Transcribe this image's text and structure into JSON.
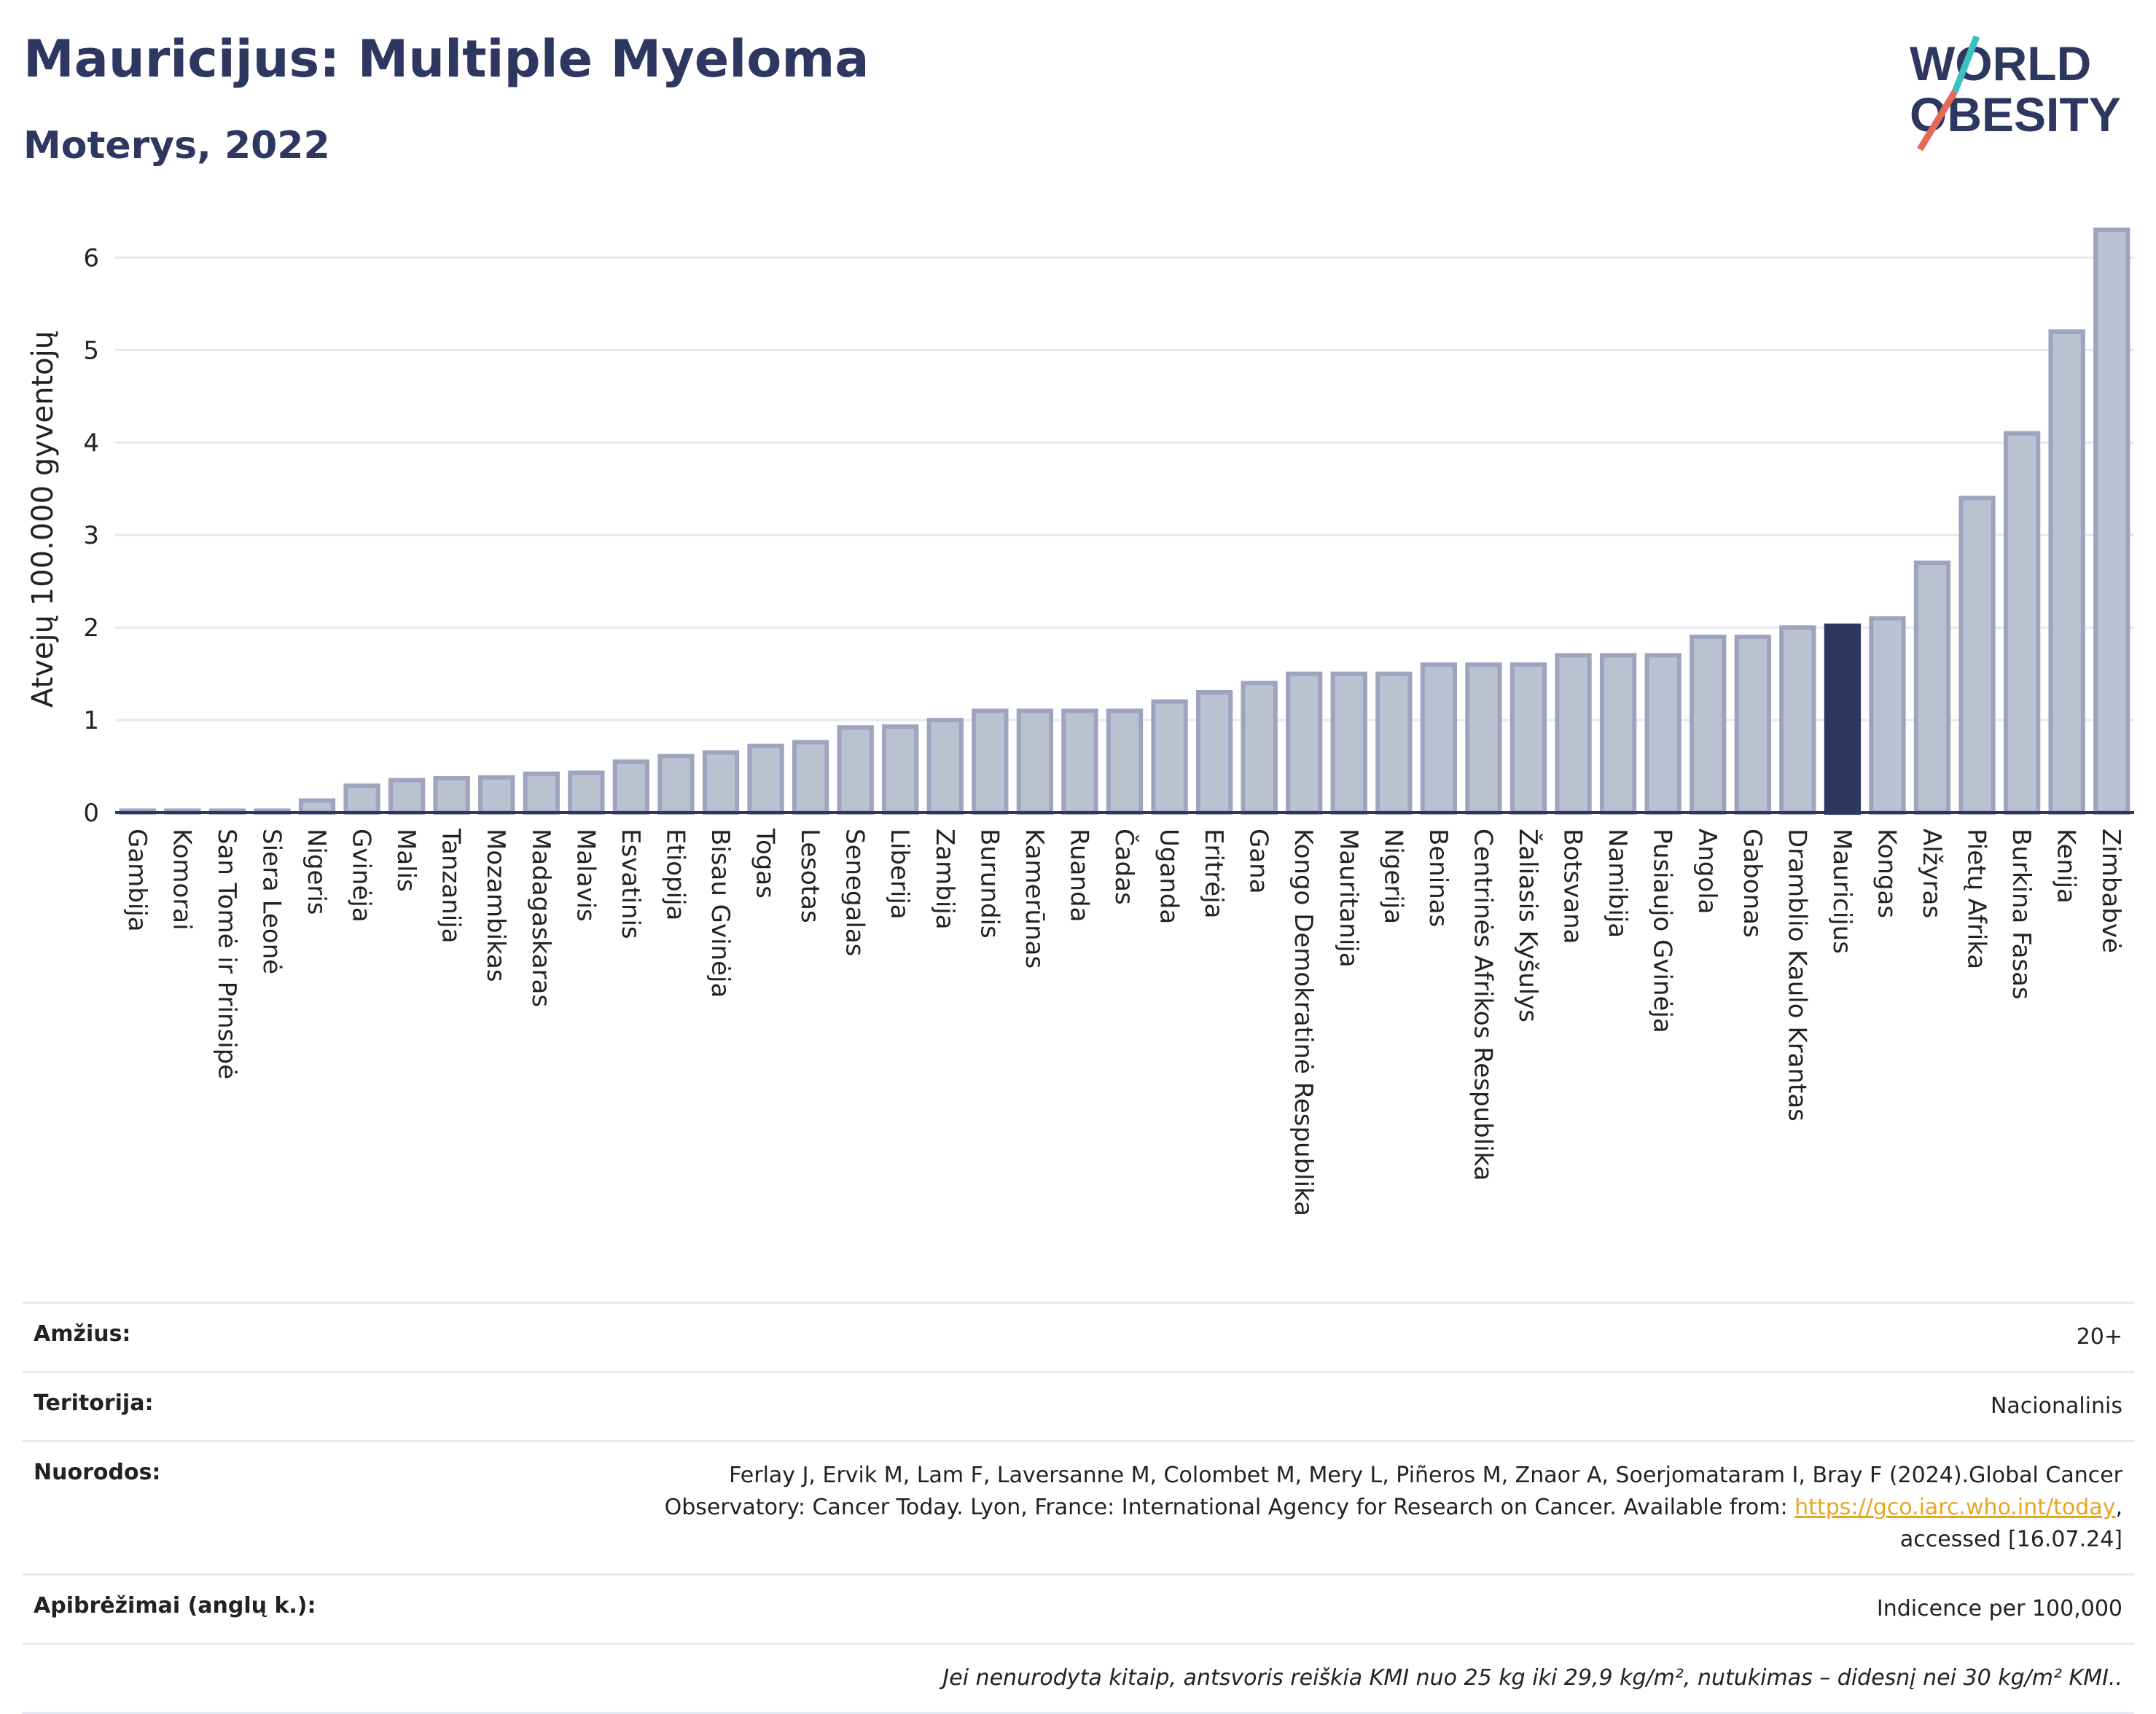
{
  "header": {
    "title": "Mauricijus: Multiple Myeloma",
    "subtitle": "Moterys, 2022"
  },
  "logo": {
    "line1": "WORLD",
    "line2": "OBESITY",
    "accent_teal": "#3cbfbf",
    "accent_red": "#e46a5a"
  },
  "colors": {
    "bar": "#bcc1d1",
    "bar_stroke": "#9ea3be",
    "highlight": "#2d3760",
    "grid": "#e6e8ef",
    "axis": "#2d3760"
  },
  "chart_data": {
    "type": "bar",
    "ylabel": "Atvejų 100.000 gyventojų",
    "ylim": [
      0,
      6.5
    ],
    "yticks": [
      0,
      1,
      2,
      3,
      4,
      5,
      6
    ],
    "highlight": "Mauricijus",
    "categories": [
      "Gambija",
      "Komorai",
      "San Tomė ir Prinsipė",
      "Siera Leonė",
      "Nigeris",
      "Gvinėja",
      "Malis",
      "Tanzanija",
      "Mozambikas",
      "Madagaskaras",
      "Malavis",
      "Esvatinis",
      "Etiopija",
      "Bisau Gvinėja",
      "Togas",
      "Lesotas",
      "Senegalas",
      "Liberija",
      "Zambija",
      "Burundis",
      "Kamerūnas",
      "Ruanda",
      "Čadas",
      "Uganda",
      "Eritrėja",
      "Gana",
      "Kongo Demokratinė Respublika",
      "Mauritanija",
      "Nigerija",
      "Beninas",
      "Centrinės Afrikos Respublika",
      "Žaliasis Kyšulys",
      "Botsvana",
      "Namibija",
      "Pusiaujo Gvinėja",
      "Angola",
      "Gabonas",
      "Dramblio Kaulo Krantas",
      "Mauricijus",
      "Kongas",
      "Alžyras",
      "Pietų Afrika",
      "Burkina Fasas",
      "Kenija",
      "Zimbabvė"
    ],
    "values": [
      0.02,
      0.02,
      0.02,
      0.02,
      0.13,
      0.29,
      0.35,
      0.37,
      0.38,
      0.42,
      0.43,
      0.55,
      0.61,
      0.65,
      0.72,
      0.76,
      0.92,
      0.93,
      1.0,
      1.1,
      1.1,
      1.1,
      1.1,
      1.2,
      1.3,
      1.4,
      1.5,
      1.5,
      1.5,
      1.6,
      1.6,
      1.6,
      1.7,
      1.7,
      1.7,
      1.9,
      1.9,
      2.0,
      2.02,
      2.1,
      2.7,
      3.4,
      4.1,
      5.2,
      6.3
    ]
  },
  "meta": {
    "age_label": "Amžius:",
    "age_value": "20+",
    "territory_label": "Teritorija:",
    "territory_value": "Nacionalinis",
    "refs_label": "Nuorodos:",
    "refs_text_1": "Ferlay J, Ervik M, Lam F, Laversanne M, Colombet M, Mery L, Piñeros M, Znaor A, Soerjomataram I, Bray F (2024).Global Cancer",
    "refs_text_2": "Observatory: Cancer Today. Lyon, France: International Agency for Research on Cancer. Available from: ",
    "refs_link": "https://gco.iarc.who.int/today",
    "refs_text_3": ",",
    "refs_text_4": "accessed [16.07.24]",
    "defs_label": "Apibrėžimai (anglų k.):",
    "defs_value": "Indicence per 100,000",
    "note": "Jei nenurodyta kitaip, antsvoris reiškia KMI nuo 25 kg iki 29,9 kg/m², nutukimas – didesnį nei 30 kg/m² KMI.."
  }
}
